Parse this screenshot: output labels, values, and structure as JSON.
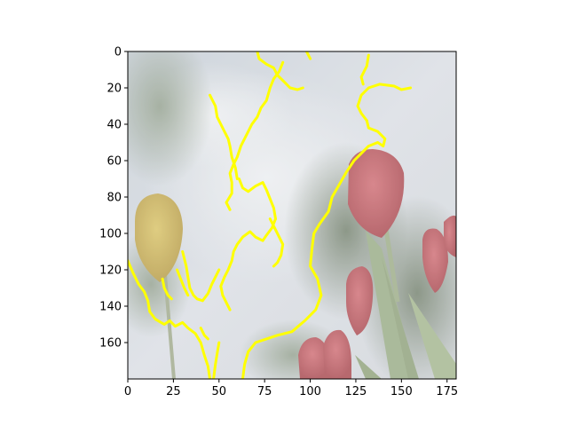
{
  "chart_data": {
    "type": "image",
    "image_description_kind": "photo of tulips with overlaid contour",
    "x": {
      "lim": [
        0,
        180
      ],
      "ticks": [
        0,
        25,
        50,
        75,
        100,
        125,
        150,
        175
      ],
      "tick_labels": [
        "0",
        "25",
        "50",
        "75",
        "100",
        "125",
        "150",
        "175"
      ]
    },
    "y": {
      "lim": [
        180,
        0
      ],
      "ticks": [
        0,
        20,
        40,
        60,
        80,
        100,
        120,
        140,
        160
      ],
      "tick_labels": [
        "0",
        "20",
        "40",
        "60",
        "80",
        "100",
        "120",
        "140",
        "160"
      ]
    },
    "overlay": {
      "color": "#ffff00",
      "contours": [
        [
          [
            0,
            115
          ],
          [
            3,
            122
          ],
          [
            6,
            128
          ],
          [
            9,
            132
          ],
          [
            11,
            137
          ],
          [
            12,
            143
          ],
          [
            15,
            147
          ],
          [
            20,
            150
          ],
          [
            23,
            148
          ],
          [
            26,
            151
          ],
          [
            30,
            149
          ],
          [
            33,
            152
          ],
          [
            37,
            155
          ],
          [
            40,
            160
          ],
          [
            42,
            167
          ],
          [
            44,
            173
          ],
          [
            45,
            180
          ]
        ],
        [
          [
            47,
            180
          ],
          [
            48,
            172
          ],
          [
            49,
            166
          ],
          [
            50,
            160
          ]
        ],
        [
          [
            63,
            180
          ],
          [
            64,
            172
          ],
          [
            66,
            165
          ],
          [
            70,
            160
          ],
          [
            76,
            158
          ],
          [
            82,
            156
          ],
          [
            90,
            154
          ],
          [
            97,
            148
          ],
          [
            103,
            142
          ],
          [
            106,
            134
          ],
          [
            104,
            125
          ],
          [
            100,
            118
          ],
          [
            101,
            108
          ],
          [
            102,
            100
          ],
          [
            105,
            95
          ],
          [
            110,
            88
          ],
          [
            112,
            80
          ],
          [
            116,
            73
          ],
          [
            120,
            66
          ],
          [
            124,
            60
          ],
          [
            128,
            56
          ],
          [
            132,
            52
          ],
          [
            137,
            50
          ],
          [
            140,
            52
          ],
          [
            141,
            48
          ],
          [
            137,
            44
          ],
          [
            132,
            42
          ],
          [
            131,
            38
          ]
        ],
        [
          [
            131,
            38
          ],
          [
            128,
            34
          ],
          [
            126,
            30
          ],
          [
            128,
            24
          ],
          [
            132,
            20
          ],
          [
            138,
            18
          ],
          [
            146,
            19
          ],
          [
            150,
            21
          ],
          [
            155,
            20
          ]
        ],
        [
          [
            100,
            4
          ],
          [
            98,
            0
          ]
        ],
        [
          [
            129,
            18
          ],
          [
            128,
            14
          ],
          [
            131,
            8
          ],
          [
            132,
            2
          ]
        ],
        [
          [
            71,
            0
          ],
          [
            72,
            4
          ],
          [
            76,
            7
          ],
          [
            80,
            9
          ],
          [
            82,
            13
          ],
          [
            86,
            17
          ],
          [
            89,
            20
          ],
          [
            93,
            21
          ],
          [
            96,
            20
          ]
        ],
        [
          [
            85,
            6
          ],
          [
            83,
            11
          ],
          [
            80,
            15
          ],
          [
            78,
            20
          ],
          [
            76,
            27
          ],
          [
            73,
            31
          ],
          [
            71,
            36
          ],
          [
            68,
            40
          ],
          [
            65,
            46
          ],
          [
            62,
            52
          ],
          [
            60,
            58
          ],
          [
            58,
            62
          ],
          [
            56,
            67
          ],
          [
            57,
            72
          ],
          [
            57,
            78
          ],
          [
            54,
            83
          ],
          [
            56,
            87
          ]
        ],
        [
          [
            45,
            24
          ],
          [
            48,
            30
          ],
          [
            49,
            36
          ],
          [
            51,
            40
          ],
          [
            53,
            44
          ],
          [
            55,
            48
          ],
          [
            56,
            52
          ],
          [
            57,
            58
          ],
          [
            59,
            64
          ],
          [
            60,
            70
          ]
        ],
        [
          [
            61,
            70
          ],
          [
            63,
            75
          ],
          [
            66,
            77
          ],
          [
            70,
            74
          ],
          [
            74,
            72
          ],
          [
            76,
            76
          ],
          [
            78,
            81
          ],
          [
            80,
            86
          ],
          [
            81,
            92
          ]
        ],
        [
          [
            81,
            92
          ],
          [
            79,
            97
          ],
          [
            76,
            101
          ],
          [
            74,
            104
          ],
          [
            70,
            102
          ],
          [
            67,
            99
          ],
          [
            63,
            102
          ],
          [
            60,
            106
          ],
          [
            58,
            110
          ],
          [
            57,
            115
          ],
          [
            55,
            120
          ],
          [
            53,
            124
          ],
          [
            51,
            129
          ],
          [
            52,
            134
          ],
          [
            54,
            138
          ],
          [
            56,
            142
          ]
        ],
        [
          [
            30,
            110
          ],
          [
            32,
            118
          ],
          [
            33,
            124
          ],
          [
            34,
            130
          ],
          [
            36,
            134
          ],
          [
            38,
            136
          ],
          [
            41,
            137
          ],
          [
            44,
            133
          ],
          [
            46,
            128
          ],
          [
            48,
            124
          ],
          [
            50,
            120
          ]
        ],
        [
          [
            27,
            120
          ],
          [
            29,
            125
          ],
          [
            31,
            130
          ],
          [
            33,
            134
          ]
        ],
        [
          [
            78,
            92
          ],
          [
            81,
            98
          ],
          [
            83,
            102
          ],
          [
            85,
            106
          ],
          [
            84,
            112
          ],
          [
            82,
            116
          ],
          [
            80,
            118
          ]
        ],
        [
          [
            40,
            152
          ],
          [
            42,
            156
          ],
          [
            44,
            158
          ]
        ],
        [
          [
            19,
            125
          ],
          [
            20,
            130
          ],
          [
            22,
            134
          ],
          [
            24,
            136
          ]
        ]
      ]
    }
  }
}
